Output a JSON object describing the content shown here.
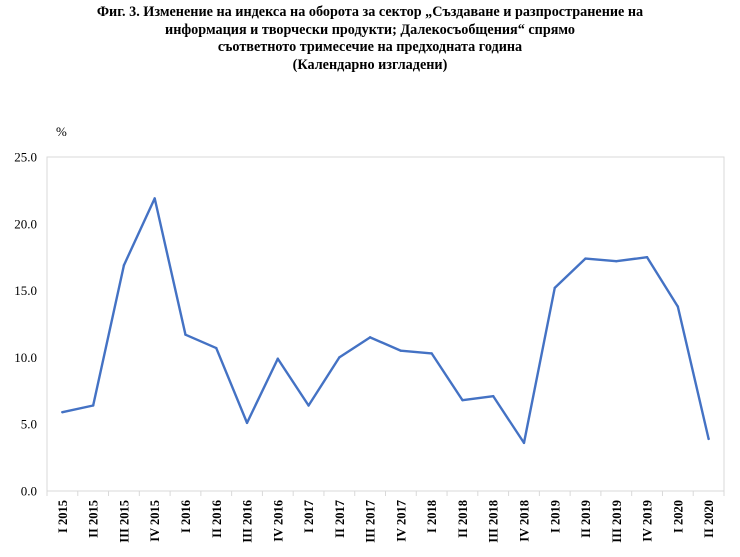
{
  "title_lines": [
    "Фиг. 3. Изменение на индекса на оборота за сектор „Създаване и разпространение на",
    "информация и творчески продукти; Далекосъобщения“ спрямо",
    "съответното тримесечие на предходната година",
    "(Календарно изгладени)"
  ],
  "chart_data": {
    "type": "line",
    "title": "Фиг. 3. Изменение на индекса на оборота за сектор „Създаване и разпространение на информация и творчески продукти; Далекосъобщения“ спрямо съответното тримесечие на предходната година (Календарно изгладени)",
    "ylabel": "%",
    "xlabel": "",
    "ylim": [
      0,
      25
    ],
    "yticks": [
      "0.0",
      "5.0",
      "10.0",
      "15.0",
      "20.0",
      "25.0"
    ],
    "grid": false,
    "legend": "none",
    "line_color": "#4472c4",
    "categories": [
      "I 2015",
      "II 2015",
      "III 2015",
      "IV 2015",
      "I 2016",
      "II 2016",
      "III 2016",
      "IV 2016",
      "I 2017",
      "II 2017",
      "III 2017",
      "IV 2017",
      "I 2018",
      "II 2018",
      "III 2018",
      "IV 2018",
      "I 2019",
      "II 2019",
      "III 2019",
      "IV 2019",
      "I 2020",
      "II 2020"
    ],
    "series": [
      {
        "values": [
          5.9,
          6.4,
          16.9,
          21.9,
          11.7,
          10.7,
          5.1,
          9.9,
          6.4,
          10.0,
          11.5,
          10.5,
          10.3,
          6.8,
          7.1,
          3.6,
          15.2,
          17.4,
          17.2,
          17.5,
          13.8,
          3.9
        ]
      }
    ]
  }
}
